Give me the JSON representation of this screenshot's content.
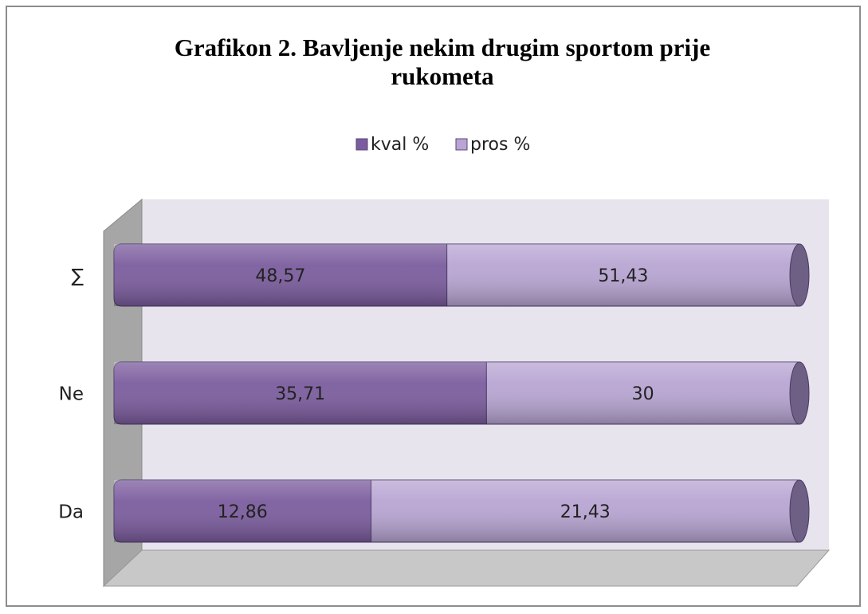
{
  "chart_data": {
    "type": "bar",
    "orientation": "horizontal",
    "stacking": "percent",
    "title": "Grafikon 2. Bavljenje nekim drugim sportom prije rukometa",
    "categories": [
      "Da",
      "Ne",
      "∑"
    ],
    "series": [
      {
        "name": "kval %",
        "color": "#7b5c9e",
        "values": [
          12.86,
          35.71,
          48.57
        ],
        "value_labels": [
          "12,86",
          "35,71",
          "48,57"
        ]
      },
      {
        "name": "pros %",
        "color": "#b8a5d3",
        "values": [
          21.43,
          30,
          51.43
        ],
        "value_labels": [
          "21,43",
          "30",
          "51,43"
        ]
      }
    ],
    "legend": "top"
  }
}
